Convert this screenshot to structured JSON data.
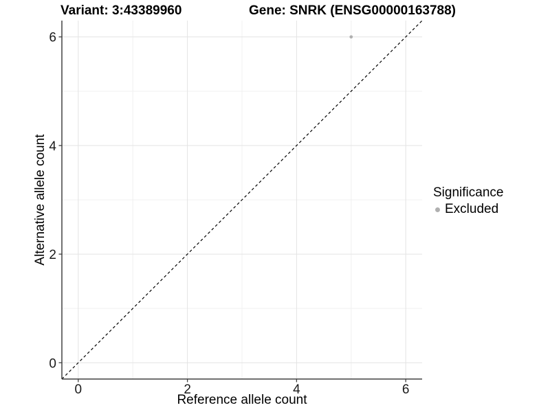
{
  "titles": {
    "variant": "Variant: 3:43389960",
    "gene": "Gene: SNRK (ENSG00000163788)"
  },
  "colors": {
    "background": "#ffffff",
    "grid_major": "#e3e3e3",
    "grid_minor": "#f0f0f0",
    "axis_line": "#404040",
    "tick_text": "#1a1a1a",
    "title_text": "#000000",
    "point": "#b0b0b0",
    "reference_line": "#000000"
  },
  "chart_data": {
    "type": "scatter",
    "title_left": "Variant: 3:43389960",
    "title_right": "Gene: SNRK (ENSG00000163788)",
    "xlabel": "Reference allele count",
    "ylabel": "Alternative allele count",
    "xlim": [
      -0.3,
      6.3
    ],
    "ylim": [
      -0.3,
      6.3
    ],
    "xticks": [
      0,
      2,
      4,
      6
    ],
    "yticks": [
      0,
      2,
      4,
      6
    ],
    "grid": {
      "major_x": [
        0,
        2,
        4,
        6
      ],
      "major_y": [
        0,
        2,
        4,
        6
      ],
      "minor_x": [
        1,
        3,
        5
      ],
      "minor_y": [
        1,
        3,
        5
      ]
    },
    "reference_line": {
      "type": "identity",
      "style": "dashed",
      "color": "#000000"
    },
    "series": [
      {
        "name": "Excluded",
        "color": "#b0b0b0",
        "points": [
          [
            5,
            6
          ]
        ]
      }
    ],
    "legend": {
      "title": "Significance",
      "position": "right"
    }
  }
}
